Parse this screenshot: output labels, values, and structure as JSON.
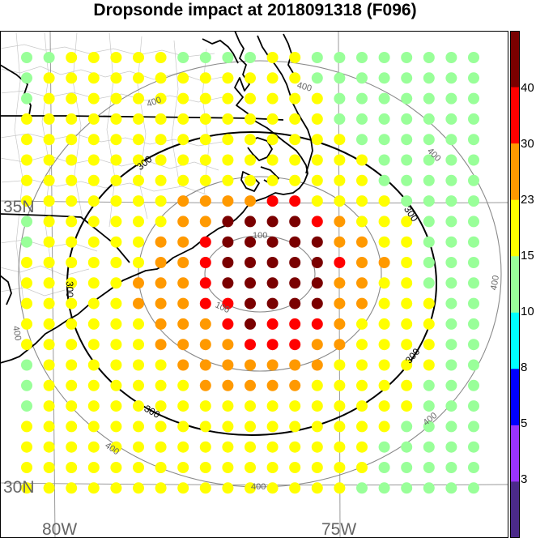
{
  "title": "Dropsonde impact at 2018091318 (F096)",
  "map": {
    "lat_labels": [
      "35N",
      "30N"
    ],
    "lon_labels": [
      "80W",
      "75W"
    ],
    "black_contour_labels": [
      "300",
      "300",
      "300",
      "300",
      "300"
    ],
    "gray_contour_labels": [
      "100",
      "100",
      "400",
      "400",
      "400",
      "400",
      "400",
      "400",
      "400"
    ],
    "contour_values": {
      "inner": 100,
      "black": 300,
      "outer": 400
    }
  },
  "colorbar": {
    "ticks": [
      "40",
      "30",
      "23",
      "15",
      "10",
      "8",
      "5",
      "3"
    ],
    "bins": [
      {
        "label": "",
        "color": "#7a0000"
      },
      {
        "label": "40",
        "color": "#ff0000"
      },
      {
        "label": "30",
        "color": "#ff9900"
      },
      {
        "label": "23",
        "color": "#ffff00"
      },
      {
        "label": "15",
        "color": "#99ff99"
      },
      {
        "label": "10",
        "color": "#00ffff"
      },
      {
        "label": "8",
        "color": "#0000ff"
      },
      {
        "label": "5",
        "color": "#9933ff"
      },
      {
        "label": "3",
        "color": "#4b2a8a"
      }
    ]
  },
  "grid_values": [
    "GGYYYYYGGGGYYGGGGGGGG",
    "GYYYYYYYYYYYYGGGGGGGG",
    "GYYYYYYYYYYYYYGGGGGGG",
    "YYYYYYYYYYYYYYGGGGGGG",
    "YYYYYYYYYYYYYYYGGGGGG",
    "YYYYYYYYYYYYYYYYGGGGG",
    "YYYYYYYYYYYYYYYYGGGGG",
    "YYYYYYYOOOORRYYYYGGGG",
    "GYYYYYYOODDDDROYYYGGG",
    "GYYYYYOORDDDDDOOYYGGG",
    "YYYYYYOORDDDDDROOYGGG",
    "YYYYYOOORDDDDDOOYYGGG",
    "YYYYYOOORRDDDDOOYYYGG",
    "YYYYYYOOORDRRROYYYYGG",
    "YYYYYYOOOORRROOYYYYGG",
    "GYYYYYYOOOOOOOYYYYYGG",
    "GYYYYYYYOOOOOYYYYYGGG",
    "GYYYYYYYYYYYYYYYYYGGG",
    "YYYYYYYYYYYYYYYYYGGGG",
    "YYYYYYYYYYYYYYYYGGGGG",
    "YYYYYYYYYYYYYYYYGGGGG",
    "YYYYYYYYYYYYYYYGGGGGG"
  ],
  "grid_legend": {
    "D": "40+",
    "R": "30-40",
    "O": "23-30",
    "Y": "15-23",
    "G": "10-15"
  },
  "colors": {
    "D": "#7a0000",
    "R": "#ff0000",
    "O": "#ff9900",
    "Y": "#ffff00",
    "G": "#99ff99"
  }
}
